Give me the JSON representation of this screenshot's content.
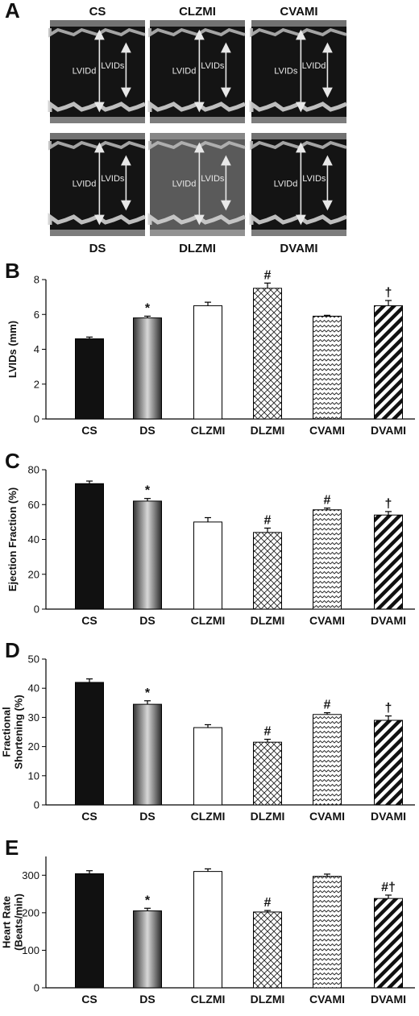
{
  "panel_a": {
    "letter": "A",
    "images": [
      {
        "title": "CS",
        "label_pos": "top",
        "big": "LVIDd",
        "small": "LVIDs"
      },
      {
        "title": "CLZMI",
        "label_pos": "top",
        "big": "LVIDd",
        "small": "LVIDs"
      },
      {
        "title": "CVAMI",
        "label_pos": "top",
        "big": "LVIDs",
        "small": "LVIDd"
      },
      {
        "title": "DS",
        "label_pos": "bottom",
        "big": "LVIDd",
        "small": "LVIDs"
      },
      {
        "title": "DLZMI",
        "label_pos": "bottom",
        "big": "LVIDd",
        "small": "LVIDs"
      },
      {
        "title": "DVAMI",
        "label_pos": "bottom",
        "big": "LVIDd",
        "small": "LVIDs"
      }
    ]
  },
  "chart_data": [
    {
      "panel": "B",
      "type": "bar",
      "ylabel_lines": [
        "LVIDs (mm)"
      ],
      "ylim": [
        0,
        8
      ],
      "yticks": [
        0,
        2,
        4,
        6,
        8
      ],
      "categories": [
        "CS",
        "DS",
        "CLZMI",
        "DLZMI",
        "CVAMI",
        "DVAMI"
      ],
      "values": [
        4.6,
        5.8,
        6.5,
        7.5,
        5.9,
        6.5
      ],
      "errors": [
        0.1,
        0.1,
        0.2,
        0.3,
        0.05,
        0.3
      ],
      "annotations": [
        "",
        "*",
        "",
        "#",
        "",
        "†"
      ]
    },
    {
      "panel": "C",
      "type": "bar",
      "ylabel_lines": [
        "Ejection Fraction (%)"
      ],
      "ylim": [
        0,
        80
      ],
      "yticks": [
        0,
        20,
        40,
        60,
        80
      ],
      "categories": [
        "CS",
        "DS",
        "CLZMI",
        "DLZMI",
        "CVAMI",
        "DVAMI"
      ],
      "values": [
        72,
        62,
        50,
        44,
        57,
        54
      ],
      "errors": [
        1.5,
        1.5,
        2.5,
        2.5,
        1,
        2
      ],
      "annotations": [
        "",
        "*",
        "",
        "#",
        "#",
        "†"
      ]
    },
    {
      "panel": "D",
      "type": "bar",
      "ylabel_lines": [
        "Fractional",
        "Shortening (%)"
      ],
      "ylim": [
        0,
        50
      ],
      "yticks": [
        0,
        10,
        20,
        30,
        40,
        50
      ],
      "categories": [
        "CS",
        "DS",
        "CLZMI",
        "DLZMI",
        "CVAMI",
        "DVAMI"
      ],
      "values": [
        42,
        34.5,
        26.5,
        21.5,
        31,
        29
      ],
      "errors": [
        1.2,
        1.2,
        1,
        1,
        0.6,
        1.5
      ],
      "annotations": [
        "",
        "*",
        "",
        "#",
        "#",
        "†"
      ]
    },
    {
      "panel": "E",
      "type": "bar",
      "ylabel_lines": [
        "Heart Rate",
        "(Beats/min)"
      ],
      "ylim": [
        0,
        350
      ],
      "yticks": [
        0,
        100,
        200,
        300
      ],
      "categories": [
        "CS",
        "DS",
        "CLZMI",
        "DLZMI",
        "CVAMI",
        "DVAMI"
      ],
      "values": [
        304,
        205,
        310,
        202,
        297,
        238
      ],
      "errors": [
        8,
        7,
        7,
        4,
        6,
        9
      ],
      "annotations": [
        "",
        "*",
        "",
        "#",
        "",
        "#†"
      ]
    }
  ],
  "bar_styles": [
    "solid",
    "gradient",
    "open",
    "crosshatch",
    "wave",
    "diagonal"
  ],
  "colors": {
    "bar_fill": "#111111",
    "outline": "#000000",
    "echo_bg": "#141414"
  }
}
